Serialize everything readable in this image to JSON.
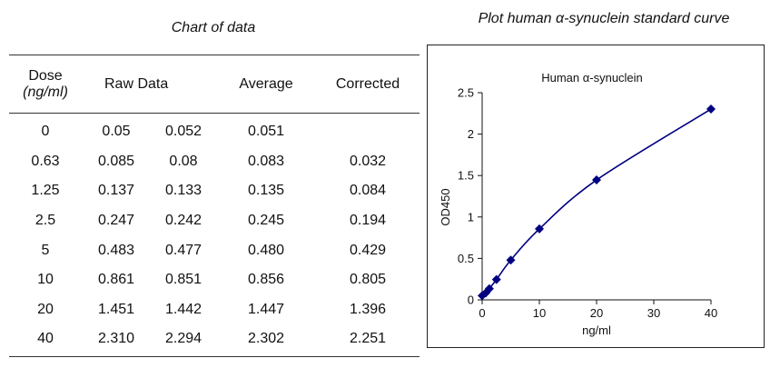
{
  "left_title": "Chart of data",
  "right_title": "Plot human α-synuclein standard curve",
  "table": {
    "headers": {
      "dose_line1": "Dose",
      "dose_line2": "(ng/ml)",
      "raw": "Raw Data",
      "average": "Average",
      "corrected": "Corrected"
    },
    "rows": [
      {
        "dose": "0",
        "raw1": "0.05",
        "raw2": "0.052",
        "average": "0.051",
        "corrected": ""
      },
      {
        "dose": "0.63",
        "raw1": "0.085",
        "raw2": "0.08",
        "average": "0.083",
        "corrected": "0.032"
      },
      {
        "dose": "1.25",
        "raw1": "0.137",
        "raw2": "0.133",
        "average": "0.135",
        "corrected": "0.084"
      },
      {
        "dose": "2.5",
        "raw1": "0.247",
        "raw2": "0.242",
        "average": "0.245",
        "corrected": "0.194"
      },
      {
        "dose": "5",
        "raw1": "0.483",
        "raw2": "0.477",
        "average": "0.480",
        "corrected": "0.429"
      },
      {
        "dose": "10",
        "raw1": "0.861",
        "raw2": "0.851",
        "average": "0.856",
        "corrected": "0.805"
      },
      {
        "dose": "20",
        "raw1": "1.451",
        "raw2": "1.442",
        "average": "1.447",
        "corrected": "1.396"
      },
      {
        "dose": "40",
        "raw1": "2.310",
        "raw2": "2.294",
        "average": "2.302",
        "corrected": "2.251"
      }
    ]
  },
  "chart_data": {
    "type": "scatter",
    "title": "Human α-synuclein",
    "xlabel": "ng/ml",
    "ylabel": "OD450",
    "xlim": [
      0,
      40
    ],
    "ylim": [
      0,
      2.5
    ],
    "xticks": [
      "0",
      "10",
      "20",
      "30",
      "40"
    ],
    "yticks": [
      "0",
      "0.5",
      "1",
      "1.5",
      "2",
      "2.5"
    ],
    "x": [
      0,
      0.63,
      1.25,
      2.5,
      5,
      10,
      20,
      40
    ],
    "y": [
      0.051,
      0.083,
      0.135,
      0.245,
      0.48,
      0.856,
      1.447,
      2.302
    ],
    "fit_curve": true,
    "marker": "diamond",
    "color": "#000080",
    "grid": false,
    "legend": "none"
  }
}
